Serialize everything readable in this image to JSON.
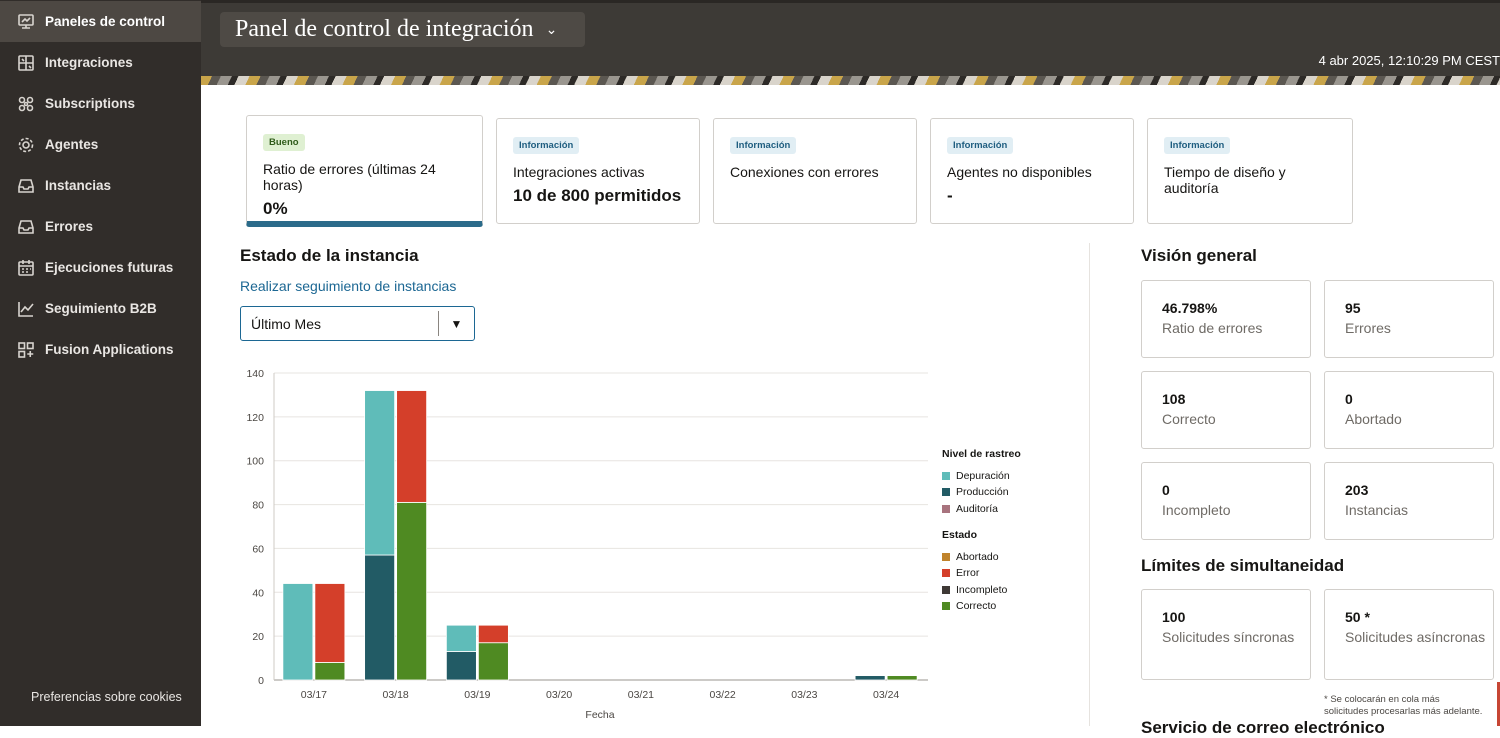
{
  "sidebar": {
    "items": [
      {
        "label": "Paneles de control",
        "icon": "dashboard-icon",
        "active": true
      },
      {
        "label": "Integraciones",
        "icon": "integrations-icon",
        "active": false
      },
      {
        "label": "Subscriptions",
        "icon": "subscriptions-icon",
        "active": false
      },
      {
        "label": "Agentes",
        "icon": "gear-icon",
        "active": false
      },
      {
        "label": "Instancias",
        "icon": "inbox-icon",
        "active": false
      },
      {
        "label": "Errores",
        "icon": "inbox-error-icon",
        "active": false
      },
      {
        "label": "Ejecuciones futuras",
        "icon": "calendar-icon",
        "active": false
      },
      {
        "label": "Seguimiento B2B",
        "icon": "line-chart-icon",
        "active": false
      },
      {
        "label": "Fusion Applications",
        "icon": "apps-icon",
        "active": false
      }
    ],
    "cookie_link": "Preferencias sobre cookies"
  },
  "header": {
    "title": "Panel de control de integración",
    "datetime": "4 abr 2025, 12:10:29 PM CEST"
  },
  "kpis": [
    {
      "badge": "Bueno",
      "label": "Ratio de errores (últimas 24 horas)",
      "value": "0%"
    },
    {
      "badge": "Información",
      "label": "Integraciones activas",
      "value": "10 de 800 permitidos"
    },
    {
      "badge": "Información",
      "label": "Conexiones con errores",
      "value": ""
    },
    {
      "badge": "Información",
      "label": "Agentes no disponibles",
      "value": "-"
    },
    {
      "badge": "Información",
      "label": "Tiempo de diseño y auditoría",
      "value": ""
    }
  ],
  "instance": {
    "title": "Estado de la instancia",
    "track_link": "Realizar seguimiento de instancias",
    "period": "Último Mes"
  },
  "overview": {
    "title": "Visión general",
    "tiles": [
      {
        "value": "46.798%",
        "label": "Ratio de errores"
      },
      {
        "value": "95",
        "label": "Errores"
      },
      {
        "value": "108",
        "label": "Correcto"
      },
      {
        "value": "0",
        "label": "Abortado"
      },
      {
        "value": "0",
        "label": "Incompleto"
      },
      {
        "value": "203",
        "label": "Instancias"
      }
    ]
  },
  "limits": {
    "title": "Límites de simultaneidad",
    "tiles": [
      {
        "value": "100",
        "label": "Solicitudes síncronas"
      },
      {
        "value": "50 *",
        "label": "Solicitudes asíncronas"
      }
    ],
    "footnote": "* Se colocarán en cola más solicitudes procesarlas más adelante."
  },
  "next_section_title": "Servicio de correo electrónico",
  "chart_data": {
    "type": "bar",
    "xlabel": "Fecha",
    "ylabel": "",
    "ylim": [
      0,
      140
    ],
    "yticks": [
      0,
      20,
      40,
      60,
      80,
      100,
      120,
      140
    ],
    "categories": [
      "03/17",
      "03/18",
      "03/19",
      "03/20",
      "03/21",
      "03/22",
      "03/23",
      "03/24"
    ],
    "trace_level": {
      "legend_title": "Nivel de rastreo",
      "series": [
        {
          "name": "Depuración",
          "color": "#5fbcb9",
          "values": [
            44,
            75,
            12,
            0,
            0,
            0,
            0,
            0
          ]
        },
        {
          "name": "Producción",
          "color": "#225b65",
          "values": [
            0,
            57,
            13,
            0,
            0,
            0,
            0,
            2
          ]
        },
        {
          "name": "Auditoría",
          "color": "#a8737e",
          "values": [
            0,
            0,
            0,
            0,
            0,
            0,
            0,
            0
          ]
        }
      ]
    },
    "status": {
      "legend_title": "Estado",
      "series": [
        {
          "name": "Abortado",
          "color": "#c0832b",
          "values": [
            0,
            0,
            0,
            0,
            0,
            0,
            0,
            0
          ]
        },
        {
          "name": "Error",
          "color": "#d43f2a",
          "values": [
            36,
            51,
            8,
            0,
            0,
            0,
            0,
            0
          ]
        },
        {
          "name": "Incompleto",
          "color": "#3e3935",
          "values": [
            0,
            0,
            0,
            0,
            0,
            0,
            0,
            0
          ]
        },
        {
          "name": "Correcto",
          "color": "#4f8a22",
          "values": [
            8,
            81,
            17,
            0,
            0,
            0,
            0,
            2
          ]
        }
      ]
    }
  }
}
